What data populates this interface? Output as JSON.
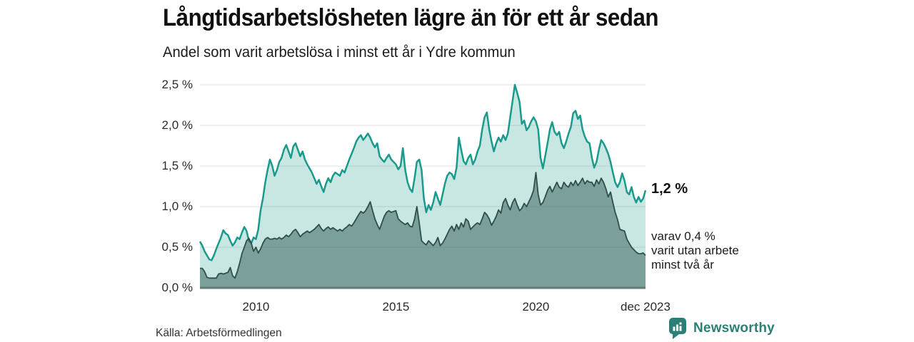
{
  "header": {
    "title": "Långtidsarbetslösheten lägre än för ett år sedan",
    "subtitle": "Andel som varit arbetslösa i minst ett år i Ydre kommun"
  },
  "chart_data": {
    "type": "area",
    "title": "Långtidsarbetslösheten lägre än för ett år sedan",
    "subtitle": "Andel som varit arbetslösa i minst ett år i Ydre kommun",
    "x_start": "jan 2008",
    "x_end": "dec 2023",
    "x_interval": "monthly",
    "ylim": [
      0,
      2.5
    ],
    "grid": true,
    "unit": "%",
    "y_ticks": [
      {
        "label": "2,5 %",
        "value": 2.5
      },
      {
        "label": "2,0 %",
        "value": 2.0
      },
      {
        "label": "1,5 %",
        "value": 1.5
      },
      {
        "label": "1,0 %",
        "value": 1.0
      },
      {
        "label": "0,5 %",
        "value": 0.5
      },
      {
        "label": "0,0 %",
        "value": 0.0
      }
    ],
    "x_ticks": [
      {
        "label": "2010",
        "month_index": 24
      },
      {
        "label": "2015",
        "month_index": 84
      },
      {
        "label": "2020",
        "month_index": 144
      },
      {
        "label": "dec 2023",
        "month_index": 191
      }
    ],
    "series": [
      {
        "name": "Andel som varit arbetslösa i minst ett år",
        "line_color": "#1a9a8c",
        "fill_color": "rgba(26,154,140,0.24)",
        "line_width": 2.5,
        "end_label": "1,2 %",
        "end_value": 1.2,
        "values": [
          0.57,
          0.52,
          0.45,
          0.4,
          0.35,
          0.34,
          0.4,
          0.48,
          0.55,
          0.62,
          0.71,
          0.67,
          0.65,
          0.58,
          0.52,
          0.56,
          0.62,
          0.6,
          0.68,
          0.75,
          0.7,
          0.58,
          0.55,
          0.62,
          0.6,
          0.72,
          0.95,
          1.1,
          1.3,
          1.45,
          1.58,
          1.5,
          1.38,
          1.45,
          1.55,
          1.6,
          1.7,
          1.76,
          1.68,
          1.6,
          1.74,
          1.78,
          1.7,
          1.62,
          1.68,
          1.58,
          1.52,
          1.47,
          1.42,
          1.35,
          1.28,
          1.33,
          1.25,
          1.18,
          1.28,
          1.35,
          1.3,
          1.38,
          1.42,
          1.4,
          1.38,
          1.45,
          1.42,
          1.5,
          1.58,
          1.65,
          1.72,
          1.8,
          1.85,
          1.88,
          1.82,
          1.86,
          1.9,
          1.85,
          1.78,
          1.73,
          1.78,
          1.62,
          1.58,
          1.55,
          1.6,
          1.64,
          1.58,
          1.55,
          1.52,
          1.46,
          1.5,
          1.72,
          1.45,
          1.3,
          1.22,
          1.18,
          1.35,
          1.55,
          1.58,
          1.45,
          1.1,
          0.93,
          1.02,
          0.96,
          1.05,
          1.18,
          1.1,
          1.02,
          1.15,
          1.28,
          1.38,
          1.42,
          1.4,
          1.34,
          1.48,
          1.85,
          1.7,
          1.56,
          1.52,
          1.6,
          1.64,
          1.52,
          1.58,
          1.68,
          1.75,
          1.95,
          2.1,
          2.16,
          1.95,
          1.8,
          1.68,
          1.78,
          1.85,
          1.8,
          1.88,
          1.82,
          1.9,
          2.1,
          2.3,
          2.5,
          2.4,
          2.29,
          2.02,
          2.06,
          1.94,
          1.98,
          2.05,
          2.1,
          2.05,
          1.95,
          1.6,
          1.47,
          1.62,
          1.78,
          1.95,
          2.04,
          1.92,
          1.88,
          1.92,
          1.78,
          1.72,
          1.8,
          1.9,
          1.98,
          2.15,
          2.18,
          2.08,
          2.12,
          1.95,
          1.86,
          1.8,
          1.78,
          1.6,
          1.48,
          1.55,
          1.7,
          1.82,
          1.78,
          1.72,
          1.65,
          1.55,
          1.42,
          1.3,
          1.24,
          1.3,
          1.41,
          1.32,
          1.18,
          1.15,
          1.24,
          1.12,
          1.05,
          1.12,
          1.06,
          1.1,
          1.2
        ]
      },
      {
        "name": "varav utan arbete minst två år",
        "line_color": "#2e4f49",
        "fill_color": "rgba(52,94,86,0.52)",
        "line_width": 1.8,
        "end_label": "varav 0,4 %\nvarit utan arbete\nminst två år",
        "end_value": 0.4,
        "values": [
          0.24,
          0.24,
          0.2,
          0.13,
          0.12,
          0.12,
          0.12,
          0.12,
          0.17,
          0.18,
          0.17,
          0.18,
          0.19,
          0.25,
          0.15,
          0.12,
          0.2,
          0.3,
          0.42,
          0.5,
          0.58,
          0.61,
          0.55,
          0.45,
          0.5,
          0.43,
          0.48,
          0.55,
          0.6,
          0.62,
          0.6,
          0.6,
          0.61,
          0.6,
          0.62,
          0.6,
          0.62,
          0.65,
          0.63,
          0.66,
          0.7,
          0.72,
          0.68,
          0.63,
          0.66,
          0.68,
          0.7,
          0.68,
          0.7,
          0.72,
          0.75,
          0.78,
          0.73,
          0.7,
          0.73,
          0.75,
          0.72,
          0.74,
          0.72,
          0.7,
          0.72,
          0.7,
          0.73,
          0.75,
          0.78,
          0.76,
          0.8,
          0.85,
          0.9,
          0.94,
          0.92,
          0.95,
          1.0,
          1.06,
          0.95,
          0.85,
          0.78,
          0.72,
          0.8,
          0.88,
          0.93,
          0.95,
          0.93,
          0.94,
          0.95,
          0.85,
          0.82,
          0.8,
          0.78,
          0.8,
          0.76,
          0.75,
          0.85,
          1.0,
          0.8,
          0.58,
          0.55,
          0.53,
          0.58,
          0.55,
          0.52,
          0.56,
          0.62,
          0.52,
          0.55,
          0.6,
          0.66,
          0.72,
          0.76,
          0.7,
          0.78,
          0.72,
          0.8,
          0.75,
          0.85,
          0.82,
          0.72,
          0.75,
          0.78,
          0.8,
          0.78,
          0.85,
          0.93,
          0.9,
          0.85,
          0.77,
          0.82,
          0.88,
          0.96,
          0.92,
          1.05,
          1.1,
          1.02,
          0.96,
          1.05,
          1.1,
          1.02,
          0.95,
          0.98,
          1.04,
          1.0,
          1.06,
          1.12,
          1.2,
          1.42,
          1.15,
          1.02,
          1.05,
          1.12,
          1.2,
          1.25,
          1.18,
          1.24,
          1.3,
          1.24,
          1.22,
          1.3,
          1.26,
          1.24,
          1.3,
          1.26,
          1.32,
          1.26,
          1.3,
          1.35,
          1.28,
          1.32,
          1.3,
          1.3,
          1.25,
          1.33,
          1.28,
          1.35,
          1.3,
          1.22,
          1.12,
          1.18,
          1.05,
          0.93,
          0.84,
          0.72,
          0.71,
          0.7,
          0.6,
          0.55,
          0.5,
          0.47,
          0.44,
          0.42,
          0.42,
          0.43,
          0.4
        ]
      }
    ]
  },
  "footer": {
    "source": "Källa: Arbetsförmedlingen",
    "logo_text": "Newsworthy"
  },
  "colors": {
    "accent_teal": "#1a9a8c",
    "dark_teal": "#2e4f49",
    "gridline": "#e2e2e2",
    "axis": "#5f7d77",
    "logo_teal": "#2b7f74",
    "background": "#ffffff"
  }
}
